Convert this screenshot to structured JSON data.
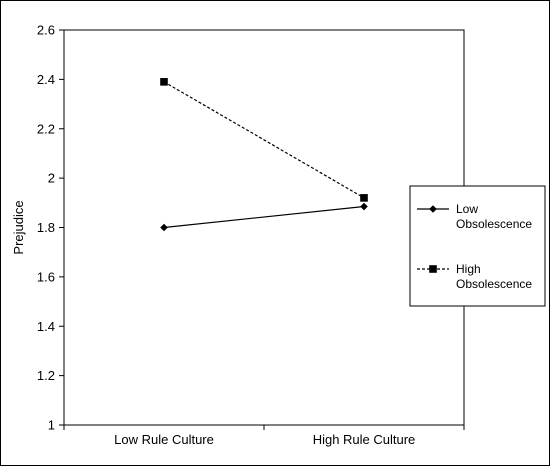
{
  "chart_data": {
    "type": "line",
    "title": "",
    "xlabel": "",
    "ylabel": "Prejudice",
    "categories": [
      "Low Rule Culture",
      "High Rule Culture"
    ],
    "ylim": [
      1,
      2.6
    ],
    "yticks": [
      "1",
      "1.2",
      "1.4",
      "1.6",
      "1.8",
      "2",
      "2.2",
      "2.4",
      "2.6"
    ],
    "grid": false,
    "legend_position": "right",
    "series": [
      {
        "name": "Low Obsolescence",
        "legend_lines": [
          "Low",
          "Obsolescence"
        ],
        "values": [
          1.8,
          1.885
        ],
        "marker": "diamond",
        "line_style": "solid",
        "color": "#000000"
      },
      {
        "name": "High Obsolescence",
        "legend_lines": [
          "High",
          "Obsolescence"
        ],
        "values": [
          2.39,
          1.92
        ],
        "marker": "square",
        "line_style": "dashed",
        "color": "#000000"
      }
    ]
  }
}
